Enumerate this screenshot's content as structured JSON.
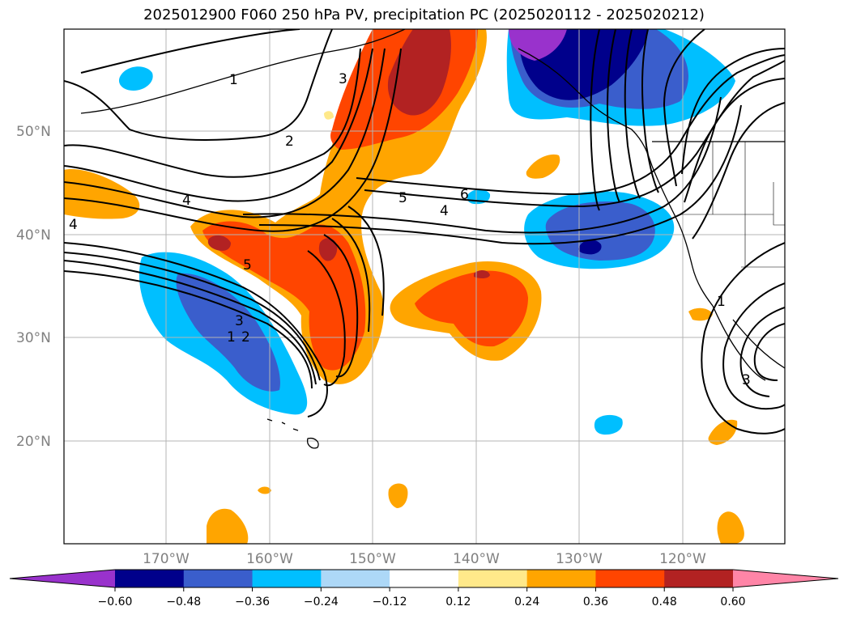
{
  "title": "2025012900 F060 250 hPa PV, precipitation PC (2025020112 - 2025020212)",
  "map": {
    "lat_labels": [
      "50°N",
      "40°N",
      "30°N",
      "20°N"
    ],
    "lon_labels": [
      "170°W",
      "160°W",
      "150°W",
      "140°W",
      "130°W",
      "120°W"
    ],
    "contour_labels": [
      "1",
      "2",
      "3",
      "4",
      "4",
      "5",
      "6",
      "4",
      "5",
      "3",
      "1",
      "2",
      "1",
      "3"
    ]
  },
  "colorbar": {
    "tick_labels": [
      "−0.60",
      "−0.48",
      "−0.36",
      "−0.24",
      "−0.12",
      "0.12",
      "0.24",
      "0.36",
      "0.48",
      "0.60"
    ],
    "colors": [
      "#9932cc",
      "#00008b",
      "#3a5ecc",
      "#00bfff",
      "#add8f7",
      "#ffffff",
      "#ffe98a",
      "#ffa500",
      "#ff4500",
      "#b22222",
      "#ff85a7"
    ]
  }
}
